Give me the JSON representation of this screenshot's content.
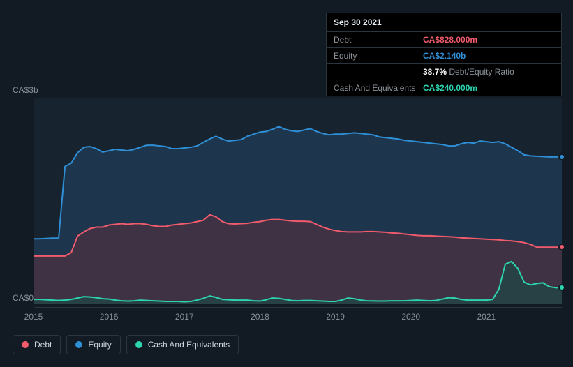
{
  "tooltip": {
    "date": "Sep 30 2021",
    "rows": [
      {
        "label": "Debt",
        "value": "CA$828.000m",
        "color": "#f15b6c"
      },
      {
        "label": "Equity",
        "value": "CA$2.140b",
        "color": "#2f8fd6"
      },
      {
        "label": "",
        "value": "38.7%",
        "suffix": "Debt/Equity Ratio",
        "color": "#ffffff",
        "suffix_color": "#8a9199"
      },
      {
        "label": "Cash And Equivalents",
        "value": "CA$240.000m",
        "color": "#2dd4b0"
      }
    ]
  },
  "chart": {
    "type": "area",
    "background": "#121b24",
    "plot_bg": "#172430",
    "grid_color": "#2a3540",
    "y_max": 3000,
    "y_min": 0,
    "y_labels": [
      {
        "text": "CA$3b",
        "value": 3000
      },
      {
        "text": "CA$0",
        "value": 0
      }
    ],
    "x_ticks": [
      "2015",
      "2016",
      "2017",
      "2018",
      "2019",
      "2020",
      "2021"
    ],
    "x_range": [
      0,
      84
    ],
    "series": [
      {
        "name": "Equity",
        "stroke": "#2f8fd6",
        "fill": "#1e3a52",
        "fill_opacity": 0.85,
        "stroke_width": 2,
        "data": [
          950,
          950,
          955,
          960,
          960,
          2000,
          2050,
          2200,
          2280,
          2290,
          2260,
          2210,
          2230,
          2250,
          2240,
          2230,
          2250,
          2280,
          2310,
          2310,
          2300,
          2290,
          2260,
          2260,
          2270,
          2280,
          2300,
          2350,
          2400,
          2440,
          2400,
          2370,
          2380,
          2390,
          2440,
          2470,
          2500,
          2510,
          2540,
          2580,
          2540,
          2520,
          2510,
          2530,
          2550,
          2510,
          2480,
          2460,
          2470,
          2470,
          2480,
          2490,
          2480,
          2470,
          2460,
          2430,
          2420,
          2410,
          2400,
          2380,
          2370,
          2360,
          2350,
          2340,
          2330,
          2320,
          2300,
          2300,
          2330,
          2350,
          2340,
          2370,
          2360,
          2350,
          2360,
          2330,
          2280,
          2230,
          2170,
          2155,
          2150,
          2145,
          2140,
          2140,
          2140
        ]
      },
      {
        "name": "Debt",
        "stroke": "#f15b6c",
        "fill": "#5c3040",
        "fill_opacity": 0.55,
        "stroke_width": 2,
        "data": [
          700,
          700,
          700,
          700,
          700,
          700,
          750,
          990,
          1050,
          1100,
          1120,
          1120,
          1150,
          1160,
          1170,
          1160,
          1170,
          1170,
          1160,
          1140,
          1130,
          1130,
          1150,
          1160,
          1170,
          1180,
          1200,
          1220,
          1300,
          1270,
          1200,
          1170,
          1165,
          1170,
          1175,
          1190,
          1200,
          1220,
          1230,
          1230,
          1220,
          1210,
          1205,
          1205,
          1200,
          1160,
          1120,
          1090,
          1070,
          1055,
          1050,
          1050,
          1050,
          1055,
          1055,
          1050,
          1045,
          1035,
          1030,
          1020,
          1010,
          1000,
          995,
          995,
          990,
          985,
          980,
          975,
          965,
          960,
          955,
          950,
          945,
          940,
          935,
          925,
          920,
          910,
          895,
          870,
          830,
          828,
          828,
          828,
          828
        ]
      },
      {
        "name": "Cash And Equivalents",
        "stroke": "#2dd4b0",
        "fill": "#1c4a44",
        "fill_opacity": 0.65,
        "stroke_width": 2,
        "data": [
          70,
          70,
          65,
          60,
          55,
          60,
          70,
          90,
          110,
          105,
          95,
          80,
          75,
          60,
          50,
          45,
          50,
          60,
          55,
          50,
          45,
          40,
          40,
          40,
          35,
          40,
          60,
          85,
          120,
          100,
          70,
          65,
          60,
          60,
          60,
          50,
          45,
          65,
          90,
          85,
          70,
          55,
          50,
          55,
          55,
          50,
          45,
          40,
          40,
          60,
          90,
          80,
          60,
          50,
          48,
          46,
          47,
          49,
          50,
          50,
          55,
          60,
          55,
          50,
          55,
          75,
          95,
          90,
          70,
          60,
          60,
          60,
          60,
          70,
          220,
          580,
          620,
          520,
          320,
          280,
          300,
          310,
          255,
          240,
          240
        ]
      }
    ]
  },
  "legend": [
    {
      "label": "Debt",
      "color": "#f15b6c"
    },
    {
      "label": "Equity",
      "color": "#2f8fd6"
    },
    {
      "label": "Cash And Equivalents",
      "color": "#2dd4b0"
    }
  ]
}
